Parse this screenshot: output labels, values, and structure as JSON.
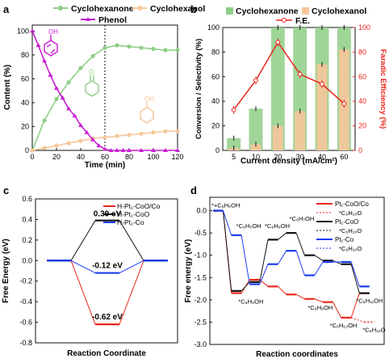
{
  "colors": {
    "green": "#8fce86",
    "orange": "#f6c79a",
    "purple": "#c81fd2",
    "red": "#e8261c",
    "blue": "#1c3cf0",
    "black": "#111111"
  },
  "chart_data": [
    {
      "panel": "a",
      "type": "line",
      "xlabel": "Time (min)",
      "ylabel": "Content (%)",
      "xlim": [
        0,
        120
      ],
      "ylim": [
        0,
        105
      ],
      "xticks": [
        "0",
        "20",
        "40",
        "60",
        "80",
        "100",
        "120"
      ],
      "yticks": [
        "0",
        "20",
        "40",
        "60",
        "80",
        "100"
      ],
      "vline": 60,
      "legend": "top",
      "series": [
        {
          "name": "Cyclohexanone",
          "x": [
            0,
            10,
            20,
            30,
            40,
            50,
            60,
            70,
            80,
            90,
            100,
            110,
            120
          ],
          "y": [
            0,
            25,
            43,
            57,
            69,
            79,
            86,
            88,
            87,
            86,
            85,
            84,
            84
          ]
        },
        {
          "name": "Cyclohexanol",
          "x": [
            0,
            10,
            20,
            30,
            40,
            50,
            60,
            70,
            80,
            90,
            100,
            110,
            120
          ],
          "y": [
            0,
            2,
            4,
            6,
            8,
            10,
            11,
            12,
            13,
            14,
            15,
            16,
            16
          ]
        },
        {
          "name": "Phenol",
          "x": [
            0,
            5,
            10,
            15,
            20,
            25,
            30,
            35,
            40,
            45,
            50,
            55,
            60,
            65,
            70,
            75,
            80,
            90,
            100,
            110,
            120
          ],
          "y": [
            100,
            88,
            75,
            63,
            52,
            44,
            35,
            29,
            21,
            15,
            9,
            4,
            1,
            0,
            0,
            0,
            0,
            0,
            0,
            0,
            0
          ]
        }
      ]
    },
    {
      "panel": "b",
      "type": "bar",
      "xlabel": "Current density (mA/cm²)",
      "ylabel": "Conversion / Selectivity (%)",
      "y2label": "Faradic Efficiency (%)",
      "categories": [
        "5",
        "10",
        "20",
        "30",
        "40",
        "60"
      ],
      "ylim": [
        0,
        100
      ],
      "yticks": [
        "0",
        "20",
        "40",
        "60",
        "80",
        "100"
      ],
      "legend": "top",
      "series": [
        {
          "name": "Cyclohexanone",
          "values": [
            10,
            34,
            100,
            100,
            100,
            100
          ]
        },
        {
          "name": "Cyclohexanol",
          "values": [
            2,
            5,
            20,
            32,
            70,
            82
          ]
        },
        {
          "name": "F.E.",
          "values": [
            33,
            57,
            88,
            62,
            54,
            38
          ]
        }
      ]
    },
    {
      "panel": "c",
      "type": "line",
      "xlabel": "Reaction Coordinate",
      "ylabel": "Free Energy (eV)",
      "ylim": [
        -0.8,
        0.6
      ],
      "yticks": [
        "0.6",
        "0.4",
        "0.2",
        "0.0",
        "-0.2",
        "-0.4",
        "-0.6",
        "-0.8"
      ],
      "legend": "top-right",
      "annotations": [
        "0.39 eV",
        "-0.12 eV",
        "-0.62 eV"
      ],
      "series": [
        {
          "name": "H-Pt₁-CoO/Co",
          "levels": [
            0,
            -0.62,
            0
          ]
        },
        {
          "name": "H-Pt₁-CoO",
          "levels": [
            0,
            0.39,
            0
          ]
        },
        {
          "name": "H-Pt₁-Co",
          "levels": [
            0,
            -0.12,
            0
          ]
        }
      ]
    },
    {
      "panel": "d",
      "type": "line",
      "xlabel": "Reaction coordinates",
      "ylabel": "Free energy (eV)",
      "ylim": [
        -3.0,
        0.3
      ],
      "yticks": [
        "0.0",
        "-0.5",
        "-1.0",
        "-1.5",
        "-2.0",
        "-2.5",
        "-3.0"
      ],
      "legend": "top-right",
      "annotations": [
        "*+C₆H₅OH",
        "*C₆H₅OH",
        "*C₆H₆OH",
        "*C₆H₇OH",
        "*C₆H₉OH",
        "*C₆H₈OH",
        "*C₆H₁₀OH",
        "*C₆H₁₁OH",
        "*C₆H₁₀O"
      ],
      "series": [
        {
          "name": "Pt₁-CoO/Co",
          "levels": [
            0,
            -1.85,
            -1.55,
            -1.7,
            -1.88,
            -1.98,
            -2.05,
            -2.4,
            -1.85
          ]
        },
        {
          "name": "Pt₁-CoO",
          "levels": [
            0,
            -1.8,
            -1.6,
            -0.65,
            -0.5,
            -1.0,
            -1.12,
            -1.2,
            -1.85
          ]
        },
        {
          "name": "Pt₁-Co",
          "levels": [
            0,
            -0.55,
            -1.65,
            -1.2,
            -0.9,
            -1.45,
            -1.15,
            -1.15,
            -1.7
          ]
        },
        {
          "name": "*C₆H₁₀O",
          "levels": [
            -2.4,
            -2.5
          ]
        }
      ]
    }
  ],
  "panels": {
    "a": {
      "letter": "a"
    },
    "b": {
      "letter": "b"
    },
    "c": {
      "letter": "c"
    },
    "d": {
      "letter": "d"
    }
  },
  "text": {
    "a_legend_ketone": "Cyclohexanone",
    "a_legend_ol": "Cyclohexanol",
    "a_legend_phenol": "Phenol",
    "b_legend_ketone": "Cyclohexanone",
    "b_legend_ol": "Cyclohexanol",
    "b_legend_fe": "F.E.",
    "c_leg1": "H-Pt₁-CoO/Co",
    "c_leg2": "H-Pt₁-CoO",
    "c_leg3": "H-Pt₁-Co",
    "c_ann1": "0.39 eV",
    "c_ann2": "-0.12 eV",
    "c_ann3": "-0.62 eV",
    "d_leg1": "Pt₁-CoO/Co",
    "d_leg1b": "*C₆H₁₀O",
    "d_leg2": "Pt₁-CoO",
    "d_leg2b": "*C₆H₁₀O",
    "d_leg3": "Pt₁-Co",
    "d_leg3b": "*C₆H₁₀O",
    "d_a0": "*+C₆H₅OH",
    "d_a1": "*C₆H₅OH",
    "d_a2": "*C₆H₆OH",
    "d_a3": "*C₆H₇OH",
    "d_a4": "*C₆H₉OH",
    "d_a5": "*C₆H₈OH",
    "d_a6": "*C₆H₁₀OH",
    "d_a7": "*C₆H₁₁OH",
    "d_a8": "*C₆H₁₀O",
    "d_a9": "*C₆H₁₀O"
  }
}
